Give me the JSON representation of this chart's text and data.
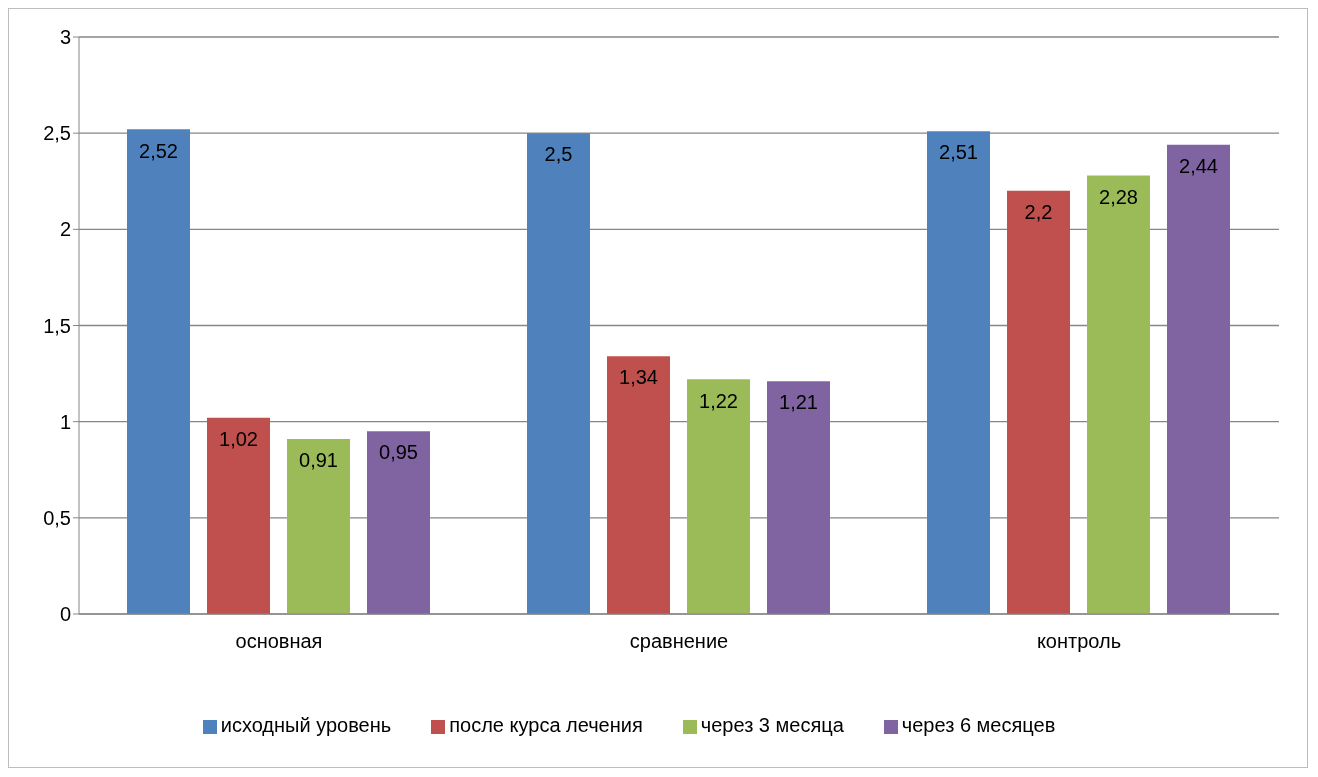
{
  "chart_data": {
    "type": "bar",
    "categories": [
      "основная",
      "сравнение",
      "контроль"
    ],
    "series": [
      {
        "name": "исходный уровень",
        "color": "#4f81bd",
        "values": [
          2.52,
          2.5,
          2.51
        ],
        "value_labels": [
          "2,52",
          "2,5",
          "2,51"
        ]
      },
      {
        "name": "после курса лечения",
        "color": "#c0504d",
        "values": [
          1.02,
          1.34,
          2.2
        ],
        "value_labels": [
          "1,02",
          "1,34",
          "2,2"
        ]
      },
      {
        "name": "через 3 месяца",
        "color": "#9bbb59",
        "values": [
          0.91,
          1.22,
          2.28
        ],
        "value_labels": [
          "0,91",
          "1,22",
          "2,28"
        ]
      },
      {
        "name": "через 6 месяцев",
        "color": "#8064a2",
        "values": [
          0.95,
          1.21,
          2.44
        ],
        "value_labels": [
          "0,95",
          "1,21",
          "2,44"
        ]
      }
    ],
    "ylim": [
      0,
      3
    ],
    "yticks": [
      0,
      {
        "value": 0.5,
        "label": "0,5"
      },
      1,
      {
        "value": 1.5,
        "label": "1,5"
      },
      2,
      {
        "value": 2.5,
        "label": "2,5"
      },
      3
    ],
    "grid": "y",
    "legend": "bottom"
  }
}
